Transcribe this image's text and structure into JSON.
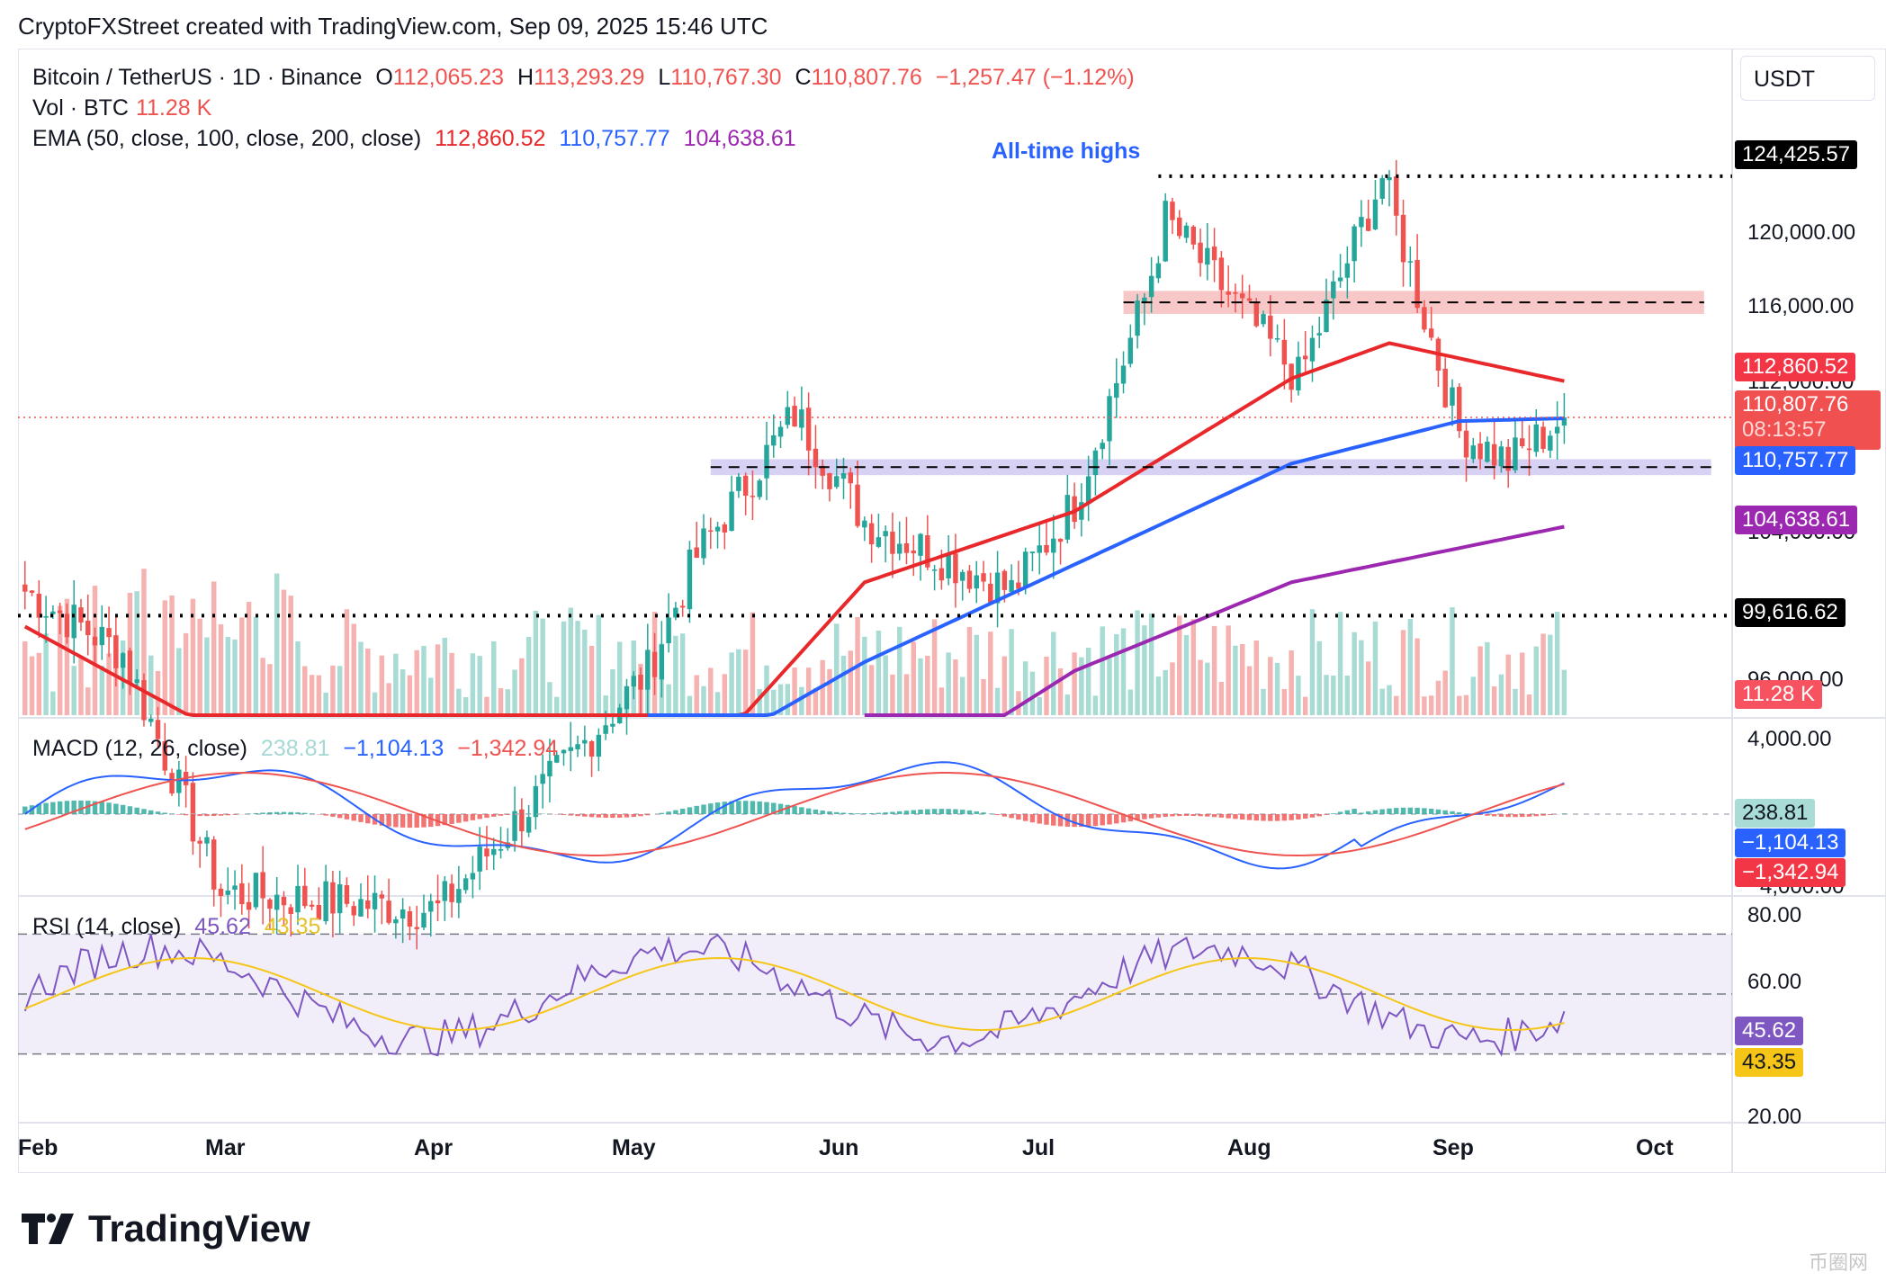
{
  "header": "CryptoFXStreet created with TradingView.com, Sep 09, 2025 15:46 UTC",
  "symbol": {
    "title": "Bitcoin / TetherUS · 1D · Binance",
    "o_label": "O",
    "o": "112,065.23",
    "h_label": "H",
    "h": "113,293.29",
    "l_label": "L",
    "l": "110,767.30",
    "c_label": "C",
    "c": "110,807.76",
    "change": "−1,257.47 (−1.12%)"
  },
  "vol": {
    "label": "Vol · BTC",
    "value": "11.28 K"
  },
  "ema": {
    "label": "EMA (50, close, 100, close, 200, close)",
    "v50": "112,860.52",
    "v100": "110,757.77",
    "v200": "104,638.61"
  },
  "macd": {
    "label": "MACD (12, 26, close)",
    "hist": "238.81",
    "macd": "−1,104.13",
    "signal": "−1,342.94"
  },
  "rsi": {
    "label": "RSI (14, close)",
    "rsi": "45.62",
    "ma": "43.35"
  },
  "currency": "USDT",
  "annotation": "All-time highs",
  "price_axis": [
    "120,000.00",
    "116,000.00",
    "112,000.00",
    "104,000.00",
    "96,000.00"
  ],
  "price_tags": {
    "ath": "124,425.57",
    "ema50": "112,860.52",
    "last": "110,807.76",
    "countdown": "08:13:57",
    "ema100": "110,757.77",
    "ema200": "104,638.61",
    "support": "99,616.62",
    "vol": "11.28 K"
  },
  "macd_axis": [
    "4,000.00",
    "−4,000.00"
  ],
  "rsi_axis": [
    "80.00",
    "60.00",
    "20.00"
  ],
  "months": [
    "Feb",
    "Mar",
    "Apr",
    "May",
    "Jun",
    "Jul",
    "Aug",
    "Sep",
    "Oct"
  ],
  "brand": "TradingView",
  "watermark": "币圈网",
  "colors": {
    "up": "#26a69a",
    "down": "#ef5350",
    "ema50": "#e8282b",
    "ema100": "#2962ff",
    "ema200": "#9c27b0",
    "rsi": "#7e57c2",
    "rsi_ma": "#f5c518"
  },
  "chart_data": [
    {
      "type": "candlestick",
      "title": "Bitcoin / TetherUS · 1D · Binance",
      "x_range": [
        "2025-01-31",
        "2025-10-03"
      ],
      "ylim": [
        94000,
        126500
      ],
      "horizontal_levels": [
        124425.57,
        99616.62,
        117300,
        108000
      ],
      "close_checkpoints": [
        {
          "x": "2025-02-01",
          "close": 101000
        },
        {
          "x": "2025-02-15",
          "close": 97500
        },
        {
          "x": "2025-03-01",
          "close": 84000
        },
        {
          "x": "2025-04-01",
          "close": 83000
        },
        {
          "x": "2025-05-01",
          "close": 96500
        },
        {
          "x": "2025-05-08",
          "close": 103000
        },
        {
          "x": "2025-05-22",
          "close": 111000
        },
        {
          "x": "2025-06-01",
          "close": 105000
        },
        {
          "x": "2025-06-22",
          "close": 101000
        },
        {
          "x": "2025-07-01",
          "close": 106000
        },
        {
          "x": "2025-07-11",
          "close": 117500
        },
        {
          "x": "2025-07-14",
          "close": 122000
        },
        {
          "x": "2025-08-02",
          "close": 113000
        },
        {
          "x": "2025-08-14",
          "close": 124400
        },
        {
          "x": "2025-08-25",
          "close": 110000
        },
        {
          "x": "2025-09-01",
          "close": 108300
        },
        {
          "x": "2025-09-09",
          "close": 110807.76
        }
      ],
      "ema50_checkpoints": [
        {
          "x": "2025-02-01",
          "v": 99000
        },
        {
          "x": "2025-03-15",
          "v": 90000
        },
        {
          "x": "2025-05-01",
          "v": 88000
        },
        {
          "x": "2025-06-01",
          "v": 101500
        },
        {
          "x": "2025-07-01",
          "v": 105500
        },
        {
          "x": "2025-08-01",
          "v": 113000
        },
        {
          "x": "2025-08-15",
          "v": 115000
        },
        {
          "x": "2025-09-09",
          "v": 112860.52
        }
      ],
      "ema100_checkpoints": [
        {
          "x": "2025-05-01",
          "v": 90000
        },
        {
          "x": "2025-06-01",
          "v": 97000
        },
        {
          "x": "2025-07-01",
          "v": 102500
        },
        {
          "x": "2025-08-01",
          "v": 108200
        },
        {
          "x": "2025-08-25",
          "v": 110600
        },
        {
          "x": "2025-09-09",
          "v": 110757.77
        }
      ],
      "ema200_checkpoints": [
        {
          "x": "2025-06-01",
          "v": 89000
        },
        {
          "x": "2025-07-01",
          "v": 96500
        },
        {
          "x": "2025-08-01",
          "v": 101500
        },
        {
          "x": "2025-09-09",
          "v": 104638.61
        }
      ]
    },
    {
      "type": "bar",
      "title": "MACD (12, 26, close)",
      "ylim": [
        -4000,
        4000
      ],
      "latest": {
        "histogram": 238.81,
        "macd": -1104.13,
        "signal": -1342.94
      }
    },
    {
      "type": "line",
      "title": "RSI (14, close)",
      "ylim": [
        20,
        80
      ],
      "bands": [
        70,
        50,
        30
      ],
      "latest": {
        "rsi": 45.62,
        "rsi_ma": 43.35
      }
    }
  ]
}
